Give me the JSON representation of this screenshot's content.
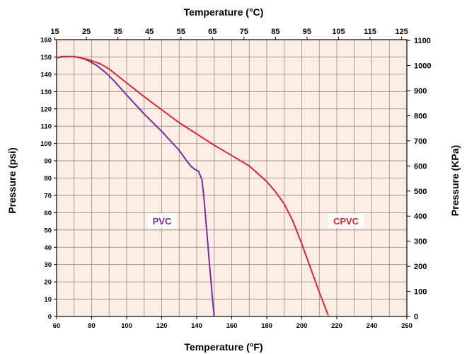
{
  "chart_data": {
    "type": "line",
    "xlabel_bottom": "Temperature (°F)",
    "xlabel_top": "Temperature (°C)",
    "ylabel_left": "Pressure (psi)",
    "ylabel_right": "Pressure (KPa)",
    "x_range": [
      60,
      260
    ],
    "y_range": [
      0,
      160
    ],
    "x_ticks_bottom": [
      "60",
      "80",
      "100",
      "120",
      "140",
      "160",
      "180",
      "200",
      "220",
      "240",
      "260"
    ],
    "x_ticks_top": [
      "15",
      "25",
      "35",
      "45",
      "55",
      "65",
      "75",
      "85",
      "95",
      "105",
      "115",
      "125"
    ],
    "y_ticks_left": [
      "0",
      "10",
      "20",
      "30",
      "40",
      "50",
      "60",
      "70",
      "80",
      "90",
      "100",
      "110",
      "120",
      "130",
      "140",
      "150",
      "160"
    ],
    "y_ticks_right": [
      "0",
      "100",
      "200",
      "300",
      "400",
      "500",
      "600",
      "700",
      "800",
      "900",
      "1000",
      "1100"
    ],
    "grid": true,
    "series": [
      {
        "name": "PVC",
        "color": "#7b2aa0",
        "x": [
          60,
          63,
          68,
          73,
          78,
          83,
          88,
          93,
          100,
          110,
          120,
          130,
          135,
          137,
          139,
          141,
          143,
          144,
          145,
          146,
          147,
          148,
          149,
          150
        ],
        "y": [
          149.5,
          150.2,
          150.3,
          149.8,
          148,
          145,
          141,
          136,
          128,
          117,
          107,
          96,
          89,
          86.5,
          85,
          84,
          79,
          70,
          58,
          46,
          34,
          22,
          10,
          0
        ]
      },
      {
        "name": "CPVC",
        "color": "#e2242b",
        "x": [
          60,
          63,
          70,
          78,
          85,
          90,
          100,
          110,
          120,
          130,
          140,
          150,
          160,
          170,
          180,
          185,
          190,
          195,
          200,
          205,
          210,
          215
        ],
        "y": [
          149.5,
          150,
          150.2,
          148.5,
          146,
          143,
          135,
          127,
          119.5,
          112,
          105.5,
          99,
          93,
          87,
          78,
          72,
          65,
          55,
          42,
          28,
          14,
          1
        ]
      }
    ]
  }
}
